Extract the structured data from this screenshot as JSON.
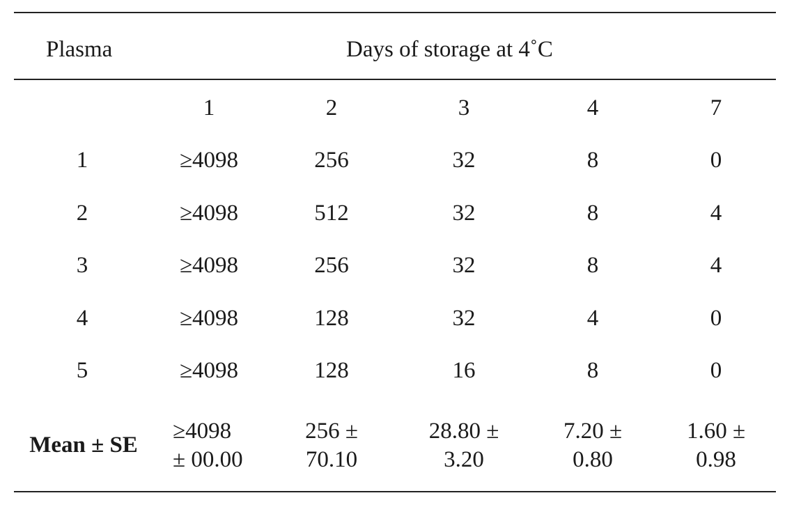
{
  "table": {
    "header_row_label": "Plasma",
    "header_span_label": "Days of storage at 4˚C",
    "day_headers": [
      "1",
      "2",
      "3",
      "4",
      "7"
    ],
    "rows": [
      {
        "plasma": "1",
        "values": [
          "≥4098",
          "256",
          "32",
          "8",
          "0"
        ]
      },
      {
        "plasma": "2",
        "values": [
          "≥4098",
          "512",
          "32",
          "8",
          "4"
        ]
      },
      {
        "plasma": "3",
        "values": [
          "≥4098",
          "256",
          "32",
          "8",
          "4"
        ]
      },
      {
        "plasma": "4",
        "values": [
          "≥4098",
          "128",
          "32",
          "4",
          "0"
        ]
      },
      {
        "plasma": "5",
        "values": [
          "≥4098",
          "128",
          "16",
          "8",
          "0"
        ]
      }
    ],
    "mean_row": {
      "label": "Mean ± SE",
      "values": [
        {
          "line1": "≥4098",
          "line2": "± 00.00"
        },
        {
          "line1": "256 ±",
          "line2": "70.10"
        },
        {
          "line1": "28.80 ±",
          "line2": "3.20"
        },
        {
          "line1": "7.20 ±",
          "line2": "0.80"
        },
        {
          "line1": "1.60 ±",
          "line2": "0.98"
        }
      ]
    }
  }
}
